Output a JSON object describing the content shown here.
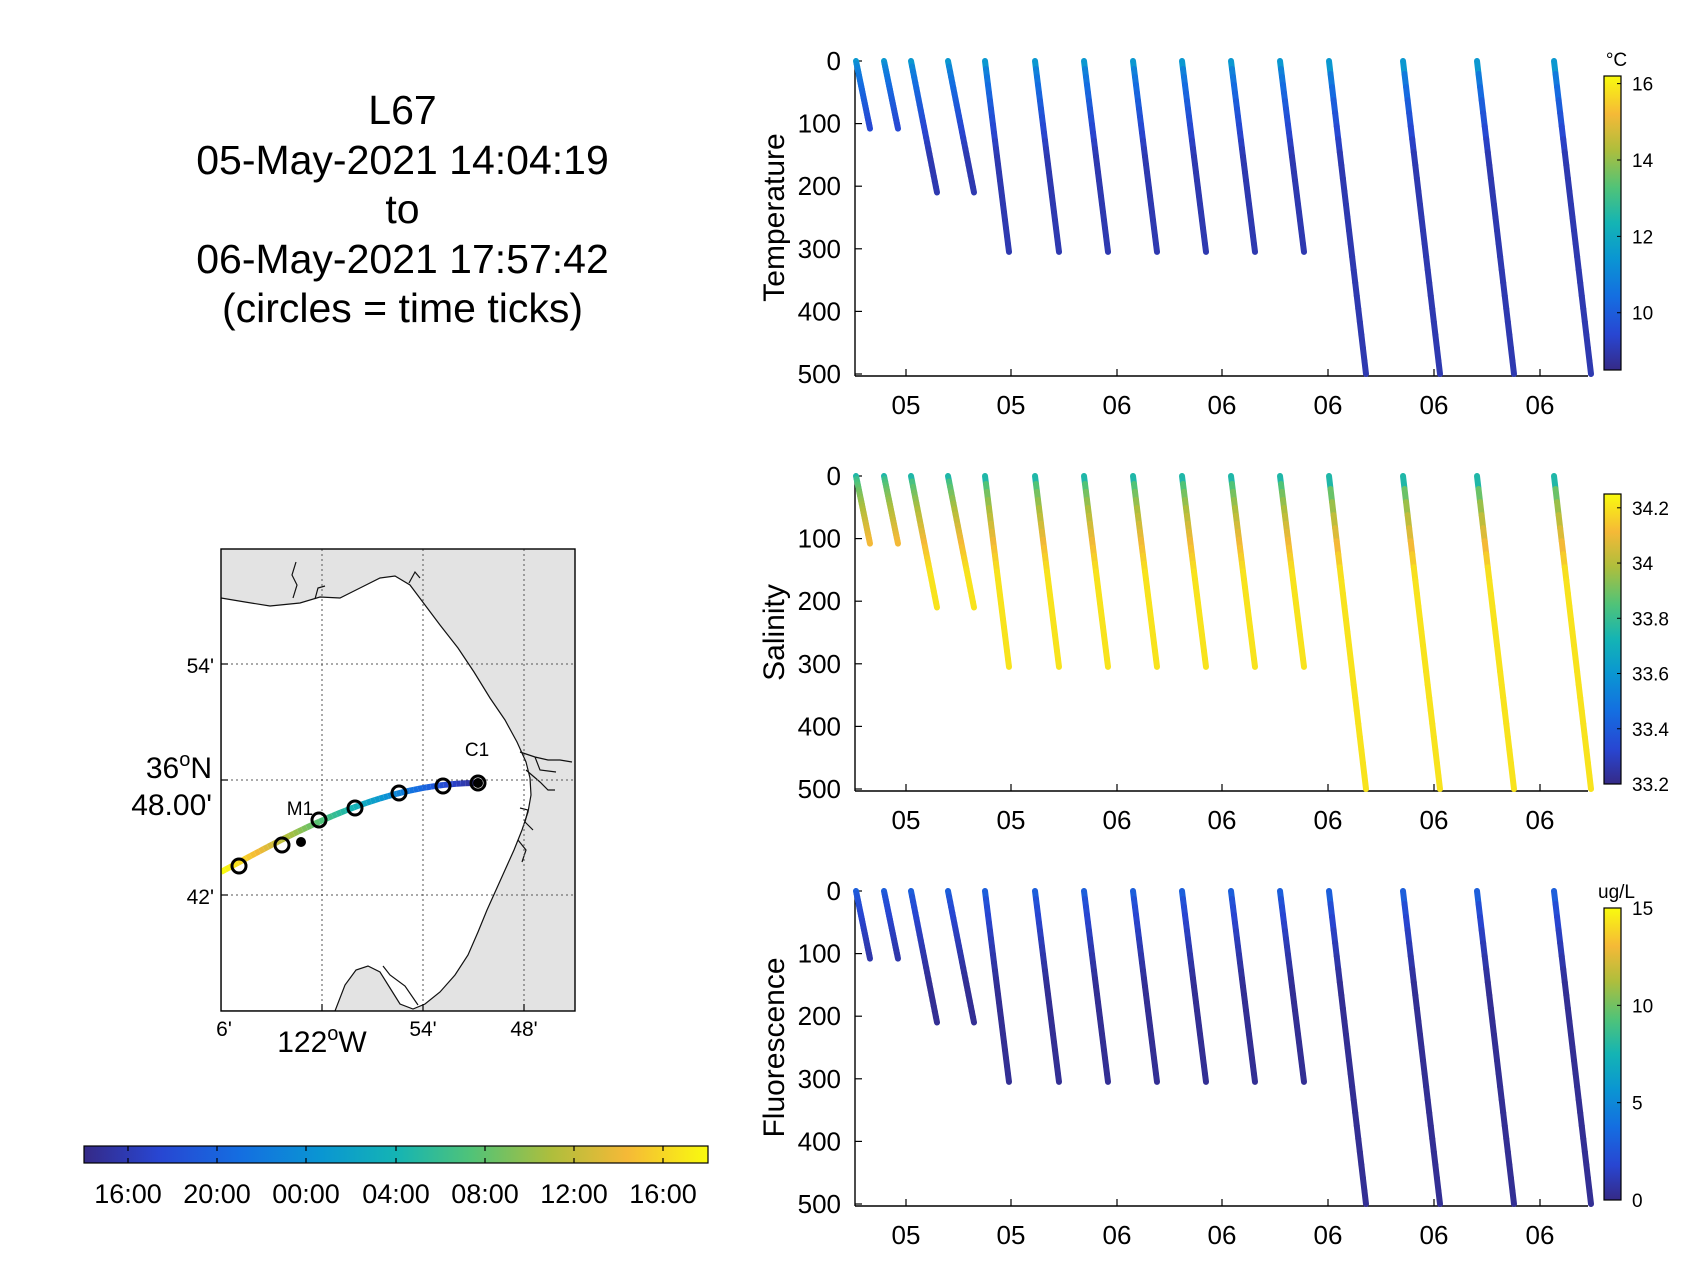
{
  "title": {
    "lines": [
      "L67",
      "05-May-2021 14:04:19",
      "to",
      "06-May-2021 17:57:42",
      "(circles = time ticks)"
    ]
  },
  "map": {
    "y_ticks": [
      "54'",
      "42'"
    ],
    "lat_label_line1": "36",
    "lat_label_deg": "o",
    "lat_label_hem": "N",
    "lat_label_line2": "48.00'",
    "x_ticks": [
      "6'",
      "54'",
      "48'"
    ],
    "lon_label_num": "122",
    "lon_label_deg": "o",
    "lon_label_hem": "W",
    "station_labels": [
      "M1",
      "C1"
    ],
    "colors": {
      "land": "#e3e3e3",
      "water": "#ffffff",
      "grid": "#555555"
    }
  },
  "time_colorbar": {
    "tick_labels": [
      "16:00",
      "20:00",
      "00:00",
      "04:00",
      "08:00",
      "12:00",
      "16:00"
    ]
  },
  "chart_data": [
    {
      "type": "scatter",
      "ylabel": "Temperature",
      "colorbar_unit": "°C",
      "colorbar_ticks": [
        "10",
        "12",
        "14",
        "16"
      ],
      "clim": [
        8.5,
        16.2
      ],
      "ylim": [
        0,
        500
      ],
      "y_reversed": true,
      "y_tick_labels": [
        "0",
        "100",
        "200",
        "300",
        "400",
        "500"
      ],
      "x_tick_labels": [
        "05",
        "05",
        "06",
        "06",
        "06",
        "06",
        "06"
      ],
      "colormap": "parula",
      "profile_max_depths": [
        108,
        108,
        210,
        210,
        305,
        305,
        305,
        305,
        305,
        305,
        305,
        500,
        500,
        500,
        500
      ],
      "surface_value": 11.5,
      "deep_value": 9.0
    },
    {
      "type": "scatter",
      "ylabel": "Salinity",
      "colorbar_unit": "",
      "colorbar_ticks": [
        "33.2",
        "33.4",
        "33.6",
        "33.8",
        "34",
        "34.2"
      ],
      "clim": [
        33.2,
        34.25
      ],
      "ylim": [
        0,
        500
      ],
      "y_reversed": true,
      "y_tick_labels": [
        "0",
        "100",
        "200",
        "300",
        "400",
        "500"
      ],
      "x_tick_labels": [
        "05",
        "05",
        "06",
        "06",
        "06",
        "06",
        "06"
      ],
      "colormap": "parula",
      "profile_max_depths": [
        108,
        108,
        210,
        210,
        305,
        305,
        305,
        305,
        305,
        305,
        305,
        500,
        500,
        500,
        500
      ],
      "surface_value": 33.75,
      "deep_value": 34.2
    },
    {
      "type": "scatter",
      "ylabel": "Fluorescence",
      "colorbar_unit": "ug/L",
      "colorbar_ticks": [
        "0",
        "5",
        "10",
        "15"
      ],
      "clim": [
        0,
        15
      ],
      "ylim": [
        0,
        500
      ],
      "y_reversed": true,
      "y_tick_labels": [
        "0",
        "100",
        "200",
        "300",
        "400",
        "500"
      ],
      "x_tick_labels": [
        "05",
        "05",
        "06",
        "06",
        "06",
        "06",
        "06"
      ],
      "colormap": "parula",
      "profile_max_depths": [
        108,
        108,
        210,
        210,
        305,
        305,
        305,
        305,
        305,
        305,
        305,
        500,
        500,
        500,
        500
      ],
      "surface_value": 3.0,
      "deep_value": 0.3
    }
  ]
}
